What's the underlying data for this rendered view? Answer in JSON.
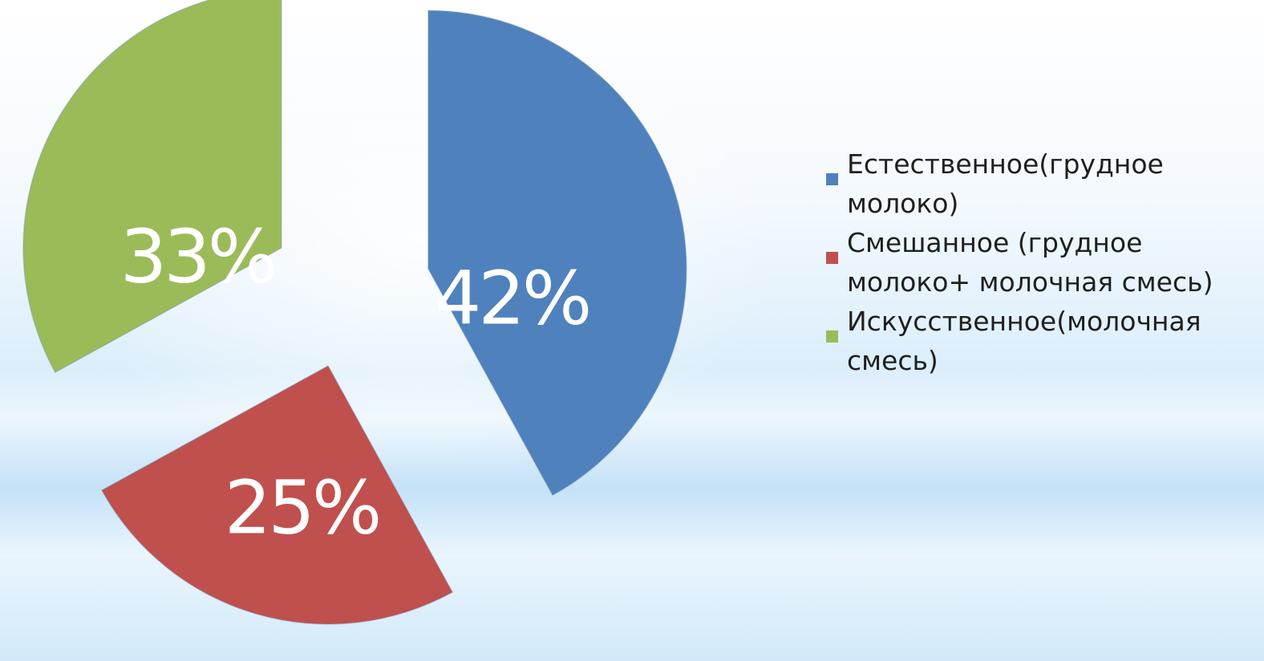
{
  "chart_data": {
    "type": "pie",
    "exploded": true,
    "categories": [
      "Естественное(грудное молоко)",
      "Смешанное (грудное молоко+ молочная смесь)",
      "Искусственное(молочная смесь)"
    ],
    "values": [
      42,
      25,
      33
    ],
    "data_labels": [
      "42%",
      "25%",
      "33%"
    ],
    "colors": [
      "#4f81bd",
      "#c0504d",
      "#9bbb59"
    ],
    "legend_placement": "right"
  },
  "legend": {
    "items": [
      {
        "text": "Естественное(грудное молоко)",
        "color": "#4f81bd"
      },
      {
        "text": "Смешанное (грудное молоко+ молочная смесь)",
        "color": "#c0504d"
      },
      {
        "text": "Искусственное(молочная смесь)",
        "color": "#9bbb59"
      }
    ]
  }
}
